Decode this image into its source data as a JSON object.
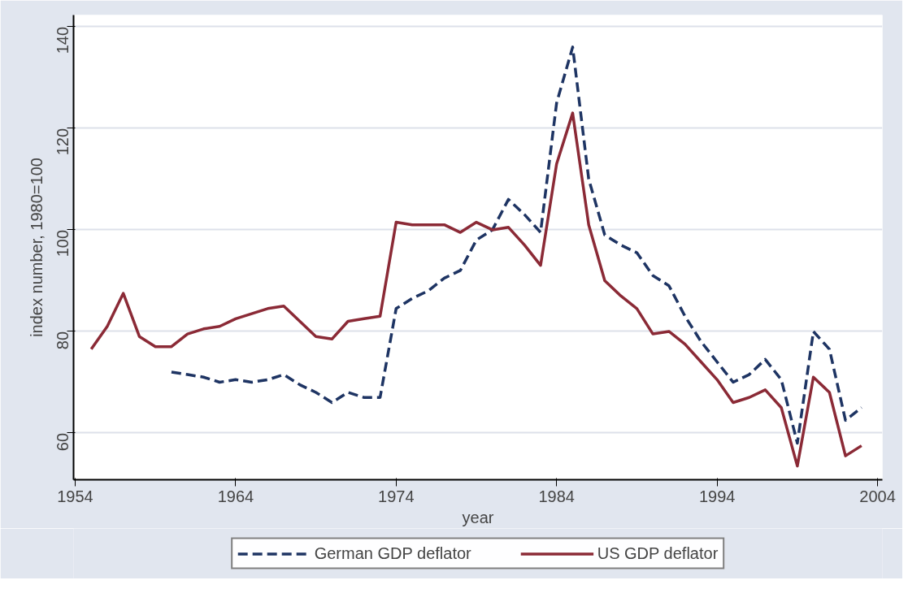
{
  "chart_data": {
    "type": "line",
    "xlabel": "year",
    "ylabel": "index number, 1980=100",
    "xlim": [
      1953.9,
      2004.3
    ],
    "ylim": [
      50.8,
      142.3
    ],
    "xticks": [
      1954,
      1964,
      1974,
      1984,
      1994,
      2004
    ],
    "yticks": [
      60,
      80,
      100,
      120,
      140
    ],
    "grid": "y",
    "legend": "bottom",
    "series": [
      {
        "name": "German GDP deflator",
        "color": "#1e3463",
        "line_style": "dashed",
        "x": [
          1960,
          1961,
          1962,
          1963,
          1964,
          1965,
          1966,
          1967,
          1968,
          1969,
          1970,
          1971,
          1972,
          1973,
          1974,
          1975,
          1976,
          1977,
          1978,
          1979,
          1980,
          1981,
          1982,
          1983,
          1984,
          1985,
          1986,
          1987,
          1988,
          1989,
          1990,
          1991,
          1992,
          1993,
          1994,
          1995,
          1996,
          1997,
          1998,
          1999,
          2000,
          2001,
          2002,
          2003
        ],
        "values": [
          72,
          71.5,
          71,
          70,
          70.5,
          70,
          70.5,
          71.5,
          69.5,
          68,
          66,
          68,
          67,
          67,
          84.5,
          86.5,
          88,
          90.5,
          92,
          98,
          100,
          106,
          103,
          99.5,
          125,
          136,
          110,
          99,
          97,
          95.5,
          91,
          89,
          83,
          78,
          74,
          70,
          71.5,
          74.5,
          70.5,
          58,
          80,
          76.5,
          62.5,
          65
        ]
      },
      {
        "name": "US GDP deflator",
        "color": "#8b2a36",
        "line_style": "solid",
        "x": [
          1955,
          1956,
          1957,
          1958,
          1959,
          1960,
          1961,
          1962,
          1963,
          1964,
          1965,
          1966,
          1967,
          1968,
          1969,
          1970,
          1971,
          1972,
          1973,
          1974,
          1975,
          1976,
          1977,
          1978,
          1979,
          1980,
          1981,
          1982,
          1983,
          1984,
          1985,
          1986,
          1987,
          1988,
          1989,
          1990,
          1991,
          1992,
          1993,
          1994,
          1995,
          1996,
          1997,
          1998,
          1999,
          2000,
          2001,
          2002,
          2003
        ],
        "values": [
          76.5,
          81,
          87.5,
          79,
          77,
          77,
          79.5,
          80.5,
          81,
          82.5,
          83.5,
          84.5,
          85,
          82,
          79,
          78.5,
          82,
          82.5,
          83,
          101.5,
          101,
          101,
          101,
          99.5,
          101.5,
          100,
          100.5,
          97,
          93,
          113,
          123,
          101,
          90,
          87,
          84.5,
          79.5,
          80,
          77.5,
          74,
          70.5,
          66,
          67,
          68.5,
          65,
          53.5,
          71,
          68,
          55.5,
          57.5
        ]
      }
    ]
  }
}
